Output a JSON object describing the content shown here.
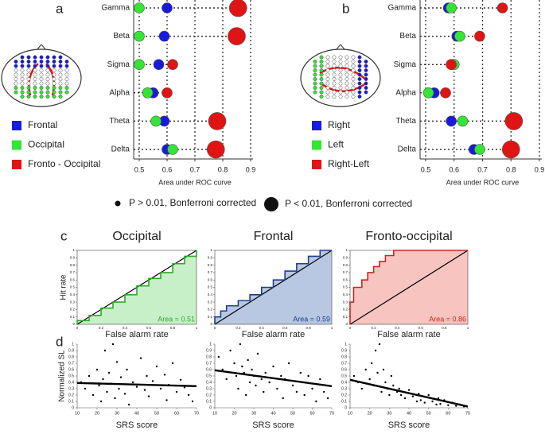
{
  "chart_data": [
    {
      "type": "dot",
      "panel_label": "a",
      "xlabel": "Area under ROC curve",
      "categories": [
        "Gamma",
        "Beta",
        "Sigma",
        "Alpha",
        "Theta",
        "Delta"
      ],
      "xlim": [
        0.5,
        0.9
      ],
      "xticks": [
        0.5,
        0.6,
        0.7,
        0.8,
        0.9
      ],
      "grid": true,
      "series": [
        {
          "name": "Frontal",
          "color": "#1a1adb",
          "values": [
            0.6,
            0.59,
            0.57,
            0.55,
            0.59,
            0.6
          ],
          "significant": [
            false,
            false,
            false,
            false,
            false,
            false
          ]
        },
        {
          "name": "Occipital",
          "color": "#33e633",
          "values": [
            0.5,
            0.5,
            0.5,
            0.53,
            0.56,
            0.62
          ],
          "significant": [
            false,
            false,
            false,
            false,
            false,
            false
          ]
        },
        {
          "name": "Fronto - Occipital",
          "color": "#e01414",
          "values": [
            0.855,
            0.85,
            0.62,
            0.6,
            0.78,
            0.775
          ],
          "significant": [
            true,
            true,
            false,
            false,
            true,
            true
          ]
        }
      ]
    },
    {
      "type": "dot",
      "panel_label": "b",
      "xlabel": "Area under ROC curve",
      "categories": [
        "Gamma",
        "Beta",
        "Sigma",
        "Alpha",
        "Theta",
        "Delta"
      ],
      "xlim": [
        0.5,
        0.9
      ],
      "xticks": [
        0.5,
        0.6,
        0.7,
        0.8,
        0.9
      ],
      "grid": true,
      "series": [
        {
          "name": "Right",
          "color": "#1a1adb",
          "values": [
            0.58,
            0.61,
            0.59,
            0.53,
            0.59,
            0.67
          ],
          "significant": [
            false,
            false,
            false,
            false,
            false,
            false
          ]
        },
        {
          "name": "Left",
          "color": "#33e633",
          "values": [
            0.59,
            0.62,
            0.6,
            0.51,
            0.63,
            0.69
          ],
          "significant": [
            false,
            false,
            false,
            false,
            false,
            false
          ]
        },
        {
          "name": "Right-Left",
          "color": "#e01414",
          "values": [
            0.77,
            0.69,
            0.59,
            0.57,
            0.81,
            0.8
          ],
          "significant": [
            false,
            false,
            false,
            false,
            true,
            true
          ]
        }
      ]
    },
    {
      "type": "roc",
      "panel_label": "c",
      "title": "Occipital",
      "xlabel": "False alarm rate",
      "ylabel": "Hit rate",
      "xlim": [
        0,
        1
      ],
      "ylim": [
        0,
        1
      ],
      "xticks": [
        0,
        0.2,
        0.4,
        0.6,
        0.8,
        1
      ],
      "yticks": [
        0,
        0.1,
        0.2,
        0.3,
        0.4,
        0.5,
        0.6,
        0.7,
        0.8,
        0.9,
        1
      ],
      "x": [
        0,
        0,
        0.1,
        0.1,
        0.2,
        0.2,
        0.3,
        0.3,
        0.4,
        0.4,
        0.5,
        0.5,
        0.6,
        0.6,
        0.7,
        0.7,
        0.8,
        0.8,
        0.9,
        0.9,
        1,
        1
      ],
      "values": [
        0,
        0.05,
        0.05,
        0.12,
        0.12,
        0.22,
        0.22,
        0.3,
        0.3,
        0.4,
        0.4,
        0.52,
        0.52,
        0.62,
        0.62,
        0.7,
        0.7,
        0.82,
        0.82,
        0.92,
        0.92,
        1
      ],
      "color": "#2fa82f",
      "fill": "#c8f0c8",
      "area": 0.51,
      "area_label": "Area = 0.51"
    },
    {
      "type": "roc",
      "title": "Frontal",
      "xlabel": "False alarm rate",
      "xlim": [
        0,
        1
      ],
      "ylim": [
        0,
        1
      ],
      "xticks": [
        0,
        0.2,
        0.4,
        0.6,
        0.8,
        1
      ],
      "yticks": [
        0,
        0.1,
        0.2,
        0.3,
        0.4,
        0.5,
        0.6,
        0.7,
        0.8,
        0.9,
        1
      ],
      "x": [
        0,
        0,
        0.05,
        0.05,
        0.1,
        0.1,
        0.2,
        0.2,
        0.3,
        0.3,
        0.4,
        0.4,
        0.5,
        0.5,
        0.6,
        0.6,
        0.7,
        0.7,
        0.8,
        0.8,
        0.9,
        0.9,
        1
      ],
      "values": [
        0,
        0.1,
        0.1,
        0.18,
        0.18,
        0.25,
        0.25,
        0.32,
        0.32,
        0.4,
        0.4,
        0.5,
        0.5,
        0.6,
        0.6,
        0.72,
        0.72,
        0.82,
        0.82,
        0.92,
        0.92,
        1,
        1
      ],
      "color": "#1f3f8f",
      "fill": "#b8c8e2",
      "area": 0.59,
      "area_label": "Area = 0.59"
    },
    {
      "type": "roc",
      "title": "Fronto-occipital",
      "xlabel": "False alarm rate",
      "xlim": [
        0,
        1
      ],
      "ylim": [
        0,
        1
      ],
      "xticks": [
        0,
        0.2,
        0.4,
        0.6,
        0.8,
        1
      ],
      "yticks": [
        0,
        0.1,
        0.2,
        0.3,
        0.4,
        0.5,
        0.6,
        0.7,
        0.8,
        0.9,
        1
      ],
      "x": [
        0,
        0,
        0.03,
        0.03,
        0.1,
        0.1,
        0.15,
        0.15,
        0.2,
        0.2,
        0.25,
        0.25,
        0.3,
        0.3,
        0.37,
        0.37,
        1
      ],
      "values": [
        0,
        0.3,
        0.3,
        0.5,
        0.5,
        0.6,
        0.6,
        0.7,
        0.7,
        0.78,
        0.78,
        0.85,
        0.85,
        0.93,
        0.93,
        1,
        1
      ],
      "color": "#c8281e",
      "fill": "#f7c4c0",
      "area": 0.86,
      "area_label": "Area = 0.86"
    },
    {
      "type": "scatter",
      "panel_label": "d",
      "xlabel": "SRS score",
      "ylabel": "Normalized SL",
      "xlim": [
        10,
        70
      ],
      "ylim": [
        0,
        1
      ],
      "xticks": [
        10,
        20,
        30,
        40,
        50,
        60,
        70
      ],
      "yticks": [
        0,
        0.1,
        0.2,
        0.3,
        0.4,
        0.5,
        0.6,
        0.7,
        0.8,
        0.9,
        1
      ],
      "x": [
        12,
        14,
        16,
        18,
        20,
        21,
        22,
        23,
        24,
        25,
        26,
        27,
        28,
        29,
        30,
        31,
        32,
        34,
        35,
        36,
        38,
        40,
        42,
        44,
        45,
        46,
        48,
        50,
        52,
        54,
        55,
        56,
        58,
        60,
        62,
        64,
        66,
        68
      ],
      "values": [
        0.4,
        0.3,
        0.5,
        0.2,
        0.6,
        0.35,
        0.1,
        0.45,
        0.9,
        0.25,
        0.55,
        0.38,
        1.0,
        0.15,
        0.72,
        0.3,
        0.48,
        0.22,
        0.6,
        0.05,
        0.4,
        0.33,
        0.78,
        0.28,
        0.5,
        0.18,
        0.42,
        0.65,
        0.3,
        0.52,
        0.12,
        0.36,
        0.7,
        0.25,
        0.44,
        0.32,
        0.2,
        0.1
      ],
      "fit_x": [
        10,
        70
      ],
      "fit_y": [
        0.39,
        0.34
      ],
      "color": "#000000"
    },
    {
      "type": "scatter",
      "xlabel": "SRS score",
      "xlim": [
        10,
        70
      ],
      "ylim": [
        0,
        1
      ],
      "xticks": [
        10,
        20,
        30,
        40,
        50,
        60,
        70
      ],
      "yticks": [
        0,
        0.1,
        0.2,
        0.3,
        0.4,
        0.5,
        0.6,
        0.7,
        0.8,
        0.9,
        1
      ],
      "x": [
        12,
        14,
        16,
        18,
        20,
        21,
        22,
        23,
        24,
        25,
        26,
        27,
        28,
        29,
        30,
        31,
        32,
        34,
        35,
        36,
        38,
        40,
        42,
        44,
        45,
        46,
        48,
        50,
        52,
        54,
        55,
        56,
        58,
        60,
        62,
        64,
        66,
        68
      ],
      "values": [
        0.8,
        0.6,
        0.45,
        0.9,
        0.7,
        0.5,
        0.3,
        1.0,
        0.65,
        0.55,
        0.2,
        0.75,
        0.4,
        0.6,
        0.5,
        0.35,
        0.85,
        0.45,
        0.25,
        0.55,
        0.4,
        0.65,
        0.3,
        0.5,
        0.15,
        0.45,
        0.7,
        0.35,
        0.25,
        0.55,
        0.4,
        0.2,
        0.5,
        0.3,
        0.1,
        0.45,
        0.25,
        0.15
      ],
      "fit_x": [
        10,
        70
      ],
      "fit_y": [
        0.59,
        0.34
      ],
      "color": "#000000"
    },
    {
      "type": "scatter",
      "xlabel": "SRS score",
      "xlim": [
        10,
        70
      ],
      "ylim": [
        0,
        1
      ],
      "xticks": [
        10,
        20,
        30,
        40,
        50,
        60,
        70
      ],
      "yticks": [
        0,
        0.1,
        0.2,
        0.3,
        0.4,
        0.5,
        0.6,
        0.7,
        0.8,
        0.9,
        1
      ],
      "x": [
        12,
        14,
        16,
        18,
        20,
        21,
        22,
        23,
        24,
        25,
        26,
        27,
        28,
        29,
        30,
        31,
        32,
        34,
        35,
        36,
        38,
        40,
        42,
        44,
        45,
        46,
        48,
        50,
        52,
        54,
        55,
        56,
        58,
        60,
        62,
        64,
        66,
        68
      ],
      "values": [
        0.5,
        0.4,
        0.3,
        0.6,
        0.45,
        0.7,
        0.35,
        0.9,
        0.55,
        1.0,
        0.25,
        0.6,
        0.4,
        0.3,
        0.2,
        0.5,
        0.35,
        0.25,
        0.3,
        0.2,
        0.15,
        0.28,
        0.18,
        0.1,
        0.22,
        0.12,
        0.08,
        0.2,
        0.1,
        0.05,
        0.15,
        0.06,
        0.12,
        0.04,
        0.08,
        0.03,
        0.05,
        0.02
      ],
      "fit_x": [
        10,
        70
      ],
      "fit_y": [
        0.44,
        0.02
      ],
      "color": "#000000"
    }
  ],
  "size_legend": {
    "small": "P > 0.01, Bonferroni corrected",
    "large": "P < 0.01, Bonferroni corrected"
  }
}
